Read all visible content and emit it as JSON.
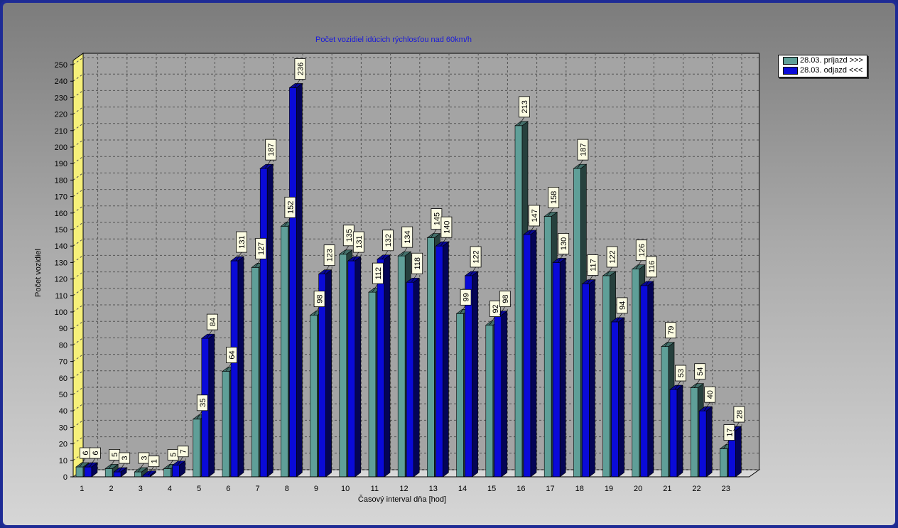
{
  "chart_data": {
    "type": "bar",
    "title": "Počet vozidiel idúcich rýchlosťou nad 60km/h",
    "xlabel": "Časový interval dňa [hod]",
    "ylabel": "Počet vozidiel",
    "ylim": [
      0,
      250
    ],
    "yticks": [
      0,
      10,
      20,
      30,
      40,
      50,
      60,
      70,
      80,
      90,
      100,
      110,
      120,
      130,
      140,
      150,
      160,
      170,
      180,
      190,
      200,
      210,
      220,
      230,
      240,
      250
    ],
    "categories": [
      "1",
      "2",
      "3",
      "4",
      "5",
      "6",
      "7",
      "8",
      "9",
      "10",
      "11",
      "12",
      "13",
      "14",
      "15",
      "16",
      "17",
      "18",
      "19",
      "20",
      "21",
      "22",
      "23"
    ],
    "grid": true,
    "legend_position": "top-right",
    "series": [
      {
        "name": "28.03.  príjazd >>>",
        "color": "#5f9f98",
        "values": [
          6,
          5,
          3,
          5,
          35,
          64,
          127,
          152,
          98,
          135,
          112,
          134,
          145,
          99,
          92,
          213,
          158,
          187,
          122,
          126,
          79,
          54,
          17
        ]
      },
      {
        "name": "28.03.  odjazd <<<",
        "color": "#0a0ad8",
        "values": [
          6,
          3,
          1,
          7,
          84,
          131,
          187,
          236,
          123,
          131,
          132,
          118,
          140,
          122,
          98,
          147,
          130,
          117,
          94,
          116,
          53,
          40,
          28
        ]
      }
    ]
  }
}
